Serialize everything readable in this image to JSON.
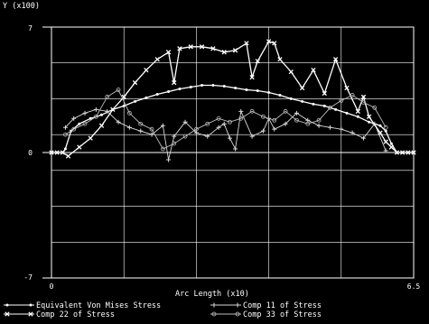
{
  "chart_data": {
    "type": "line",
    "ylabel": "Y (x100)",
    "xlabel": "Arc Length (x10)",
    "xlim": [
      0,
      6.5
    ],
    "ylim": [
      -7,
      7
    ],
    "x_tick_labels": [
      "0",
      "6.5"
    ],
    "y_tick_labels": [
      "7",
      "0",
      "-7"
    ],
    "grid": true,
    "legend_position": "bottom",
    "colors": {
      "background": "#000000",
      "grid": "#ffffff",
      "axes": "#ffffff"
    },
    "series": [
      {
        "name": "Equivalent Von Mises Stress",
        "marker": "dot",
        "color": "#ffffff",
        "x": [
          0,
          0.1,
          0.2,
          0.25,
          0.35,
          0.5,
          0.7,
          0.9,
          1.1,
          1.3,
          1.5,
          1.7,
          1.9,
          2.1,
          2.3,
          2.5,
          2.7,
          2.9,
          3.1,
          3.3,
          3.5,
          3.7,
          3.9,
          4.1,
          4.3,
          4.5,
          4.7,
          4.9,
          5.1,
          5.3,
          5.5,
          5.7,
          5.9,
          6.0,
          6.1,
          6.2,
          6.3,
          6.4,
          6.5
        ],
        "y": [
          0,
          0,
          0,
          0.2,
          1.2,
          1.6,
          1.9,
          2.1,
          2.4,
          2.6,
          2.85,
          3.05,
          3.25,
          3.4,
          3.55,
          3.65,
          3.75,
          3.75,
          3.7,
          3.6,
          3.5,
          3.45,
          3.35,
          3.2,
          3.0,
          2.85,
          2.7,
          2.6,
          2.4,
          2.2,
          2.0,
          1.7,
          1.5,
          1.2,
          0.5,
          0,
          0,
          0,
          0
        ]
      },
      {
        "name": "Comp 11 of Stress",
        "marker": "plus",
        "color": "#d8d8d8",
        "x": [
          0.25,
          0.4,
          0.6,
          0.8,
          1.0,
          1.2,
          1.4,
          1.6,
          1.8,
          2.0,
          2.1,
          2.2,
          2.4,
          2.6,
          2.8,
          3.0,
          3.1,
          3.2,
          3.3,
          3.4,
          3.6,
          3.8,
          3.9,
          4.0,
          4.2,
          4.4,
          4.6,
          4.8,
          5.0,
          5.2,
          5.4,
          5.6,
          5.8,
          6.0
        ],
        "y": [
          1.4,
          1.9,
          2.2,
          2.4,
          2.3,
          1.7,
          1.4,
          1.2,
          1.0,
          1.5,
          -0.4,
          0.9,
          1.7,
          1.1,
          0.9,
          1.4,
          1.6,
          0.8,
          0.2,
          2.3,
          0.9,
          1.2,
          1.9,
          1.3,
          1.6,
          2.2,
          1.8,
          1.5,
          1.4,
          1.3,
          1.1,
          0.8,
          1.6,
          0.1
        ]
      },
      {
        "name": "Comp 22 of Stress",
        "marker": "x",
        "color": "#ffffff",
        "x": [
          0,
          0.1,
          0.2,
          0.3,
          0.5,
          0.7,
          0.9,
          1.1,
          1.3,
          1.5,
          1.7,
          1.9,
          2.1,
          2.2,
          2.3,
          2.5,
          2.7,
          2.9,
          3.1,
          3.3,
          3.5,
          3.6,
          3.7,
          3.9,
          4.0,
          4.1,
          4.3,
          4.5,
          4.7,
          4.9,
          5.1,
          5.3,
          5.5,
          5.6,
          5.7,
          5.9,
          6.0,
          6.1,
          6.2,
          6.3,
          6.4,
          6.5
        ],
        "y": [
          0,
          0,
          0,
          -0.2,
          0.3,
          0.8,
          1.5,
          2.4,
          3.1,
          3.9,
          4.6,
          5.2,
          5.6,
          3.9,
          5.8,
          5.9,
          5.9,
          5.8,
          5.6,
          5.7,
          6.1,
          4.2,
          5.1,
          6.2,
          6.1,
          5.2,
          4.5,
          3.6,
          4.6,
          3.3,
          5.2,
          3.6,
          2.3,
          3.1,
          2.0,
          1.1,
          0.6,
          0.3,
          0,
          0,
          0,
          0
        ]
      },
      {
        "name": "Comp 33 of Stress",
        "marker": "circle",
        "color": "#bdbdbd",
        "x": [
          0.25,
          0.4,
          0.6,
          0.8,
          1.0,
          1.2,
          1.4,
          1.6,
          1.8,
          2.0,
          2.2,
          2.4,
          2.6,
          2.8,
          3.0,
          3.2,
          3.4,
          3.6,
          3.8,
          4.0,
          4.2,
          4.4,
          4.6,
          4.8,
          5.0,
          5.2,
          5.4,
          5.6,
          5.8,
          6.0
        ],
        "y": [
          1.0,
          1.3,
          1.6,
          2.0,
          3.1,
          3.5,
          2.2,
          1.6,
          1.3,
          0.2,
          0.5,
          0.9,
          1.3,
          1.6,
          1.9,
          1.7,
          1.9,
          2.3,
          2.0,
          1.8,
          2.3,
          1.8,
          1.6,
          1.8,
          2.5,
          2.9,
          3.2,
          2.8,
          2.5,
          1.4
        ]
      }
    ]
  }
}
